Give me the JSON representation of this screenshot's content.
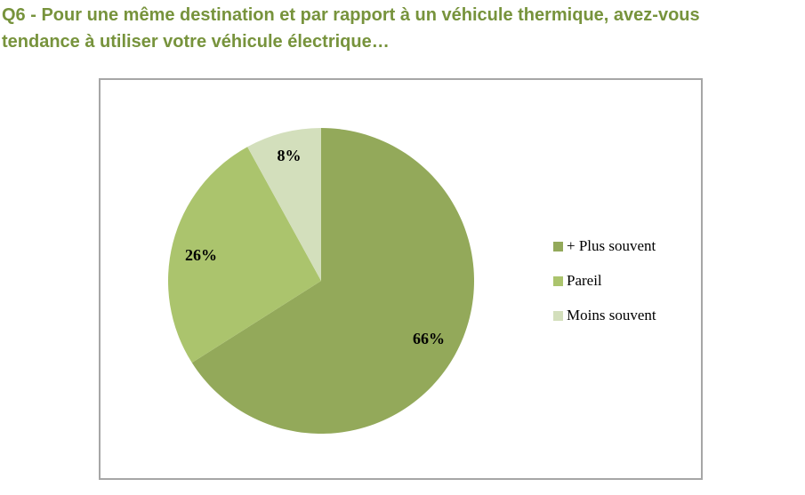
{
  "title": {
    "line1": "Q6 - Pour une même destination et par rapport à un véhicule thermique, avez-vous",
    "line2": "tendance à utiliser votre véhicule électrique…"
  },
  "chart_data": {
    "type": "pie",
    "start_angle": "12 o'clock, clockwise",
    "slices": [
      {
        "label": "+ Plus souvent",
        "value": 66,
        "value_label": "66%",
        "color": "#93a95a"
      },
      {
        "label": "Pareil",
        "value": 26,
        "value_label": "26%",
        "color": "#abc46d"
      },
      {
        "label": "Moins souvent",
        "value": 8,
        "value_label": "8%",
        "color": "#d3dfbc"
      }
    ],
    "legend": {
      "position": "right"
    }
  }
}
